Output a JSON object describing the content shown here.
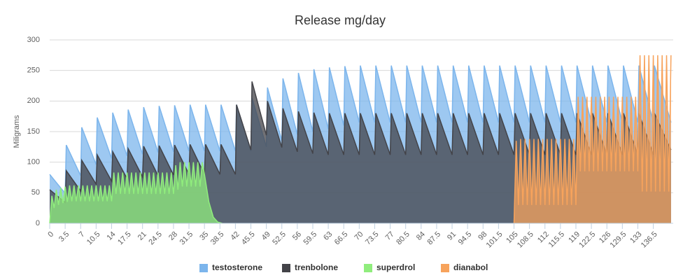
{
  "chart_data": {
    "type": "area",
    "title": "Release mg/day",
    "y_label": "Miligrams",
    "xlim": [
      0,
      141
    ],
    "ylim": [
      0,
      300
    ],
    "yticks": [
      0,
      50,
      100,
      150,
      200,
      250,
      300
    ],
    "grid": true,
    "legend": "bottom",
    "xticks": [
      0,
      3.5,
      7,
      10.5,
      14,
      17.5,
      21,
      24.5,
      28,
      31.5,
      35,
      38.5,
      42,
      45.5,
      49,
      52.5,
      56,
      59.5,
      63,
      66.5,
      70,
      73.5,
      77,
      80.5,
      84,
      87.5,
      91,
      94.5,
      98,
      101.5,
      105,
      108.5,
      112,
      115.5,
      119,
      122.5,
      126,
      129.5,
      133,
      136.5
    ],
    "series": [
      {
        "name": "testosterone",
        "color": "#7cb5ec",
        "x": [
          0,
          3.5,
          3.75,
          7,
          7.25,
          10.5,
          10.75,
          14,
          14.25,
          17.5,
          17.75,
          21,
          21.25,
          24.5,
          24.75,
          28,
          28.25,
          31.5,
          31.75,
          35,
          35.25,
          38.5,
          38.75,
          42,
          42.25,
          45.5,
          45.75,
          49,
          49.25,
          52.5,
          52.75,
          56,
          56.25,
          59.5,
          59.75,
          63,
          63.25,
          66.5,
          66.75,
          70,
          70.25,
          73.5,
          73.75,
          77,
          77.25,
          80.5,
          80.75,
          84,
          84.25,
          87.5,
          87.75,
          91,
          91.25,
          94.5,
          94.75,
          98,
          98.25,
          101.5,
          101.75,
          105,
          105.25,
          108.5,
          108.75,
          112,
          112.25,
          115.5,
          115.75,
          119,
          119.25,
          122.5,
          122.75,
          126,
          126.25,
          129.5,
          129.75,
          133,
          133.25,
          136.5,
          136.75,
          140.5
        ],
        "values": [
          80,
          49,
          128,
          78,
          157,
          96,
          173,
          106,
          181,
          110,
          186,
          113,
          190,
          116,
          192,
          117,
          193,
          118,
          194,
          118,
          194,
          118,
          194,
          118,
          194,
          118,
          205,
          125,
          222,
          135,
          237,
          145,
          246,
          150,
          252,
          154,
          255,
          160,
          257,
          165,
          258,
          165,
          258,
          165,
          258,
          165,
          258,
          165,
          258,
          165,
          258,
          165,
          258,
          165,
          258,
          165,
          258,
          165,
          258,
          165,
          258,
          165,
          258,
          165,
          258,
          165,
          258,
          165,
          258,
          165,
          258,
          165,
          258,
          165,
          258,
          165,
          258,
          165,
          258,
          165
        ]
      },
      {
        "name": "trenbolone",
        "color": "#434348",
        "x": [
          0,
          3.5,
          3.75,
          7,
          7.25,
          10.5,
          10.75,
          14,
          14.25,
          17.5,
          17.75,
          21,
          21.25,
          24.5,
          24.75,
          28,
          28.25,
          31.5,
          31.75,
          35,
          35.25,
          38.5,
          38.75,
          42,
          42.25,
          45.5,
          45.75,
          49,
          49.25,
          52.5,
          52.75,
          56,
          56.25,
          59.5,
          59.75,
          63,
          63.25,
          66.5,
          66.75,
          70,
          70.25,
          73.5,
          73.75,
          77,
          77.25,
          80.5,
          80.75,
          84,
          84.25,
          87.5,
          87.75,
          91,
          91.25,
          94.5,
          94.75,
          98,
          98.25,
          101.5,
          101.75,
          105,
          105.25,
          108.5,
          108.75,
          112,
          112.25,
          115.5,
          115.75,
          119,
          119.25,
          122.5,
          122.75,
          126,
          126.25,
          129.5,
          129.75,
          133,
          133.25,
          136.5,
          136.75,
          140.5
        ],
        "values": [
          55,
          34,
          86,
          53,
          103,
          64,
          112,
          69,
          117,
          73,
          122,
          76,
          126,
          78,
          127,
          79,
          128,
          80,
          129,
          80,
          129,
          80,
          129,
          80,
          194,
          120,
          232,
          144,
          200,
          124,
          188,
          117,
          183,
          114,
          181,
          112,
          180,
          112,
          180,
          112,
          180,
          112,
          180,
          112,
          180,
          112,
          180,
          112,
          180,
          112,
          180,
          112,
          180,
          112,
          180,
          112,
          180,
          112,
          180,
          112,
          180,
          112,
          180,
          112,
          180,
          112,
          180,
          112,
          180,
          112,
          180,
          112,
          180,
          112,
          180,
          112,
          180,
          112,
          180,
          120
        ]
      },
      {
        "name": "superdrol",
        "color": "#90ed7d",
        "x": [
          0,
          0.5,
          1,
          1.5,
          2,
          2.5,
          3,
          3.5,
          4,
          4.5,
          5,
          5.5,
          6,
          6.5,
          7,
          7.5,
          8,
          8.5,
          9,
          9.5,
          10,
          10.5,
          11,
          11.5,
          12,
          12.5,
          13,
          13.5,
          14,
          14.5,
          15,
          15.5,
          16,
          16.5,
          17,
          17.5,
          18,
          18.5,
          19,
          19.5,
          20,
          20.5,
          21,
          21.5,
          22,
          22.5,
          23,
          23.5,
          24,
          24.5,
          25,
          25.5,
          26,
          26.5,
          27,
          27.5,
          28,
          28.5,
          29,
          29.5,
          30,
          30.5,
          31,
          31.5,
          32,
          32.5,
          33,
          33.5,
          34,
          34.5,
          35,
          36,
          37,
          38,
          39
        ],
        "values": [
          0,
          45,
          25,
          55,
          30,
          58,
          33,
          60,
          35,
          62,
          36,
          62,
          36,
          62,
          36,
          62,
          36,
          62,
          36,
          62,
          36,
          62,
          36,
          62,
          36,
          62,
          36,
          62,
          36,
          83,
          48,
          83,
          48,
          83,
          48,
          83,
          48,
          83,
          48,
          83,
          48,
          83,
          48,
          83,
          48,
          83,
          48,
          83,
          48,
          83,
          48,
          83,
          48,
          83,
          48,
          83,
          48,
          95,
          55,
          100,
          60,
          100,
          60,
          100,
          60,
          100,
          60,
          100,
          60,
          100,
          80,
          35,
          10,
          2,
          0
        ]
      },
      {
        "name": "dianabol",
        "color": "#f7a35c",
        "x": [
          105,
          105.5,
          106,
          106.5,
          107,
          107.5,
          108,
          108.5,
          109,
          109.5,
          110,
          110.5,
          111,
          111.5,
          112,
          112.5,
          113,
          113.5,
          114,
          114.5,
          115,
          115.5,
          116,
          116.5,
          117,
          117.5,
          118,
          118.5,
          119,
          119.5,
          120,
          120.5,
          121,
          121.5,
          122,
          122.5,
          123,
          123.5,
          124,
          124.5,
          125,
          125.5,
          126,
          126.5,
          127,
          127.5,
          128,
          128.5,
          129,
          129.5,
          130,
          130.5,
          131,
          131.5,
          132,
          132.5,
          133,
          133.5,
          134,
          134.5,
          135,
          135.5,
          136,
          136.5,
          137,
          137.5,
          138,
          138.5,
          139,
          139.5,
          140,
          140.5
        ],
        "values": [
          0,
          135,
          30,
          138,
          30,
          138,
          30,
          138,
          30,
          138,
          30,
          138,
          30,
          138,
          30,
          138,
          30,
          138,
          30,
          138,
          30,
          138,
          30,
          138,
          30,
          138,
          30,
          138,
          30,
          207,
          85,
          207,
          85,
          207,
          85,
          207,
          85,
          207,
          85,
          207,
          85,
          207,
          85,
          207,
          85,
          207,
          85,
          207,
          85,
          207,
          85,
          207,
          85,
          207,
          85,
          207,
          85,
          275,
          52,
          275,
          52,
          275,
          52,
          275,
          52,
          275,
          52,
          275,
          52,
          275,
          52,
          275
        ]
      }
    ]
  }
}
